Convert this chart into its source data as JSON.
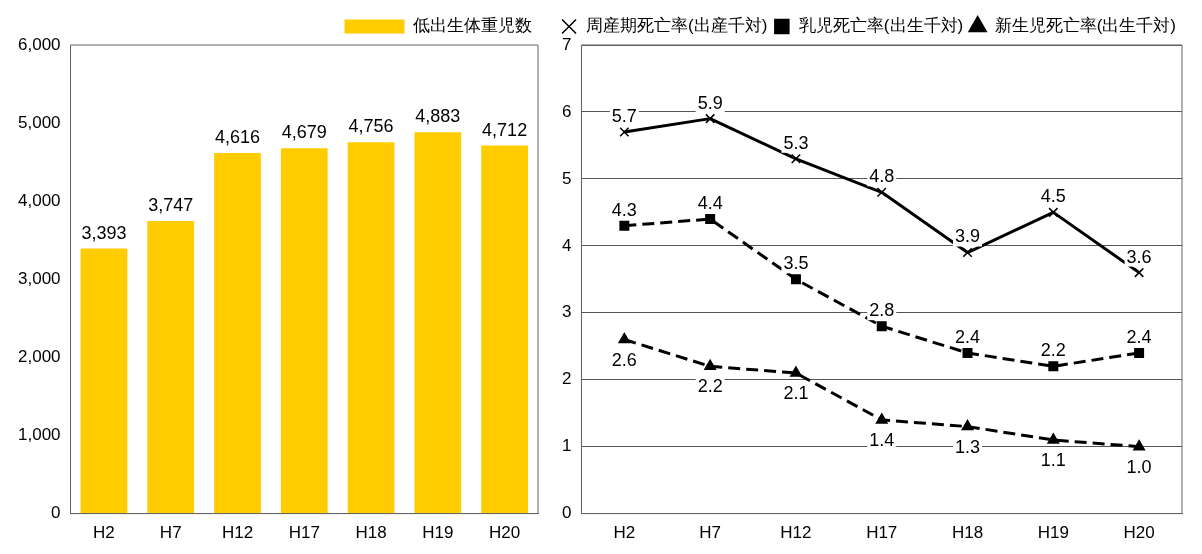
{
  "chart_data": [
    {
      "type": "bar",
      "categories": [
        "H2",
        "H7",
        "H12",
        "H17",
        "H18",
        "H19",
        "H20"
      ],
      "series": [
        {
          "name": "低出生体重児数",
          "color": "#ffcc00",
          "values": [
            3393,
            3747,
            4616,
            4679,
            4756,
            4883,
            4712
          ],
          "value_labels": [
            "3,393",
            "3,747",
            "4,616",
            "4,679",
            "4,756",
            "4,883",
            "4,712"
          ]
        }
      ],
      "ylim": [
        0,
        6000
      ],
      "yticks": [
        0,
        {
          "value": 1000,
          "label": "1,000"
        },
        {
          "value": 2000,
          "label": "2,000"
        },
        {
          "value": 3000,
          "label": "3,000"
        },
        {
          "value": 4000,
          "label": "4,000"
        },
        {
          "value": 5000,
          "label": "5,000"
        },
        {
          "value": 6000,
          "label": "6,000"
        }
      ],
      "grid": false,
      "legend": "top right"
    },
    {
      "type": "line",
      "categories": [
        "H2",
        "H7",
        "H12",
        "H17",
        "H18",
        "H19",
        "H20"
      ],
      "series": [
        {
          "name": "周産期死亡率(出産千対)",
          "color": "#000000",
          "marker": "cross",
          "line_style": "solid",
          "values": [
            5.7,
            5.9,
            5.3,
            4.8,
            3.9,
            4.5,
            3.6
          ],
          "value_labels": [
            "5.7",
            "5.9",
            "5.3",
            "4.8",
            "3.9",
            "4.5",
            "3.6"
          ]
        },
        {
          "name": "乳児死亡率(出生千対)",
          "color": "#000000",
          "marker": "square",
          "line_style": "dashed",
          "values": [
            4.3,
            4.4,
            3.5,
            2.8,
            2.4,
            2.2,
            2.4
          ],
          "value_labels": [
            "4.3",
            "4.4",
            "3.5",
            "2.8",
            "2.4",
            "2.2",
            "2.4"
          ]
        },
        {
          "name": "新生児死亡率(出生千対)",
          "color": "#000000",
          "marker": "triangle",
          "line_style": "dashed",
          "values": [
            2.6,
            2.2,
            2.1,
            1.4,
            1.3,
            1.1,
            1.0
          ],
          "value_labels": [
            "2.6",
            "2.2",
            "2.1",
            "1.4",
            "1.3",
            "1.1",
            "1.0"
          ]
        }
      ],
      "ylim": [
        0,
        7
      ],
      "yticks": [
        0,
        1,
        2,
        3,
        4,
        5,
        6,
        7
      ],
      "grid": "y",
      "legend": "top right"
    }
  ]
}
